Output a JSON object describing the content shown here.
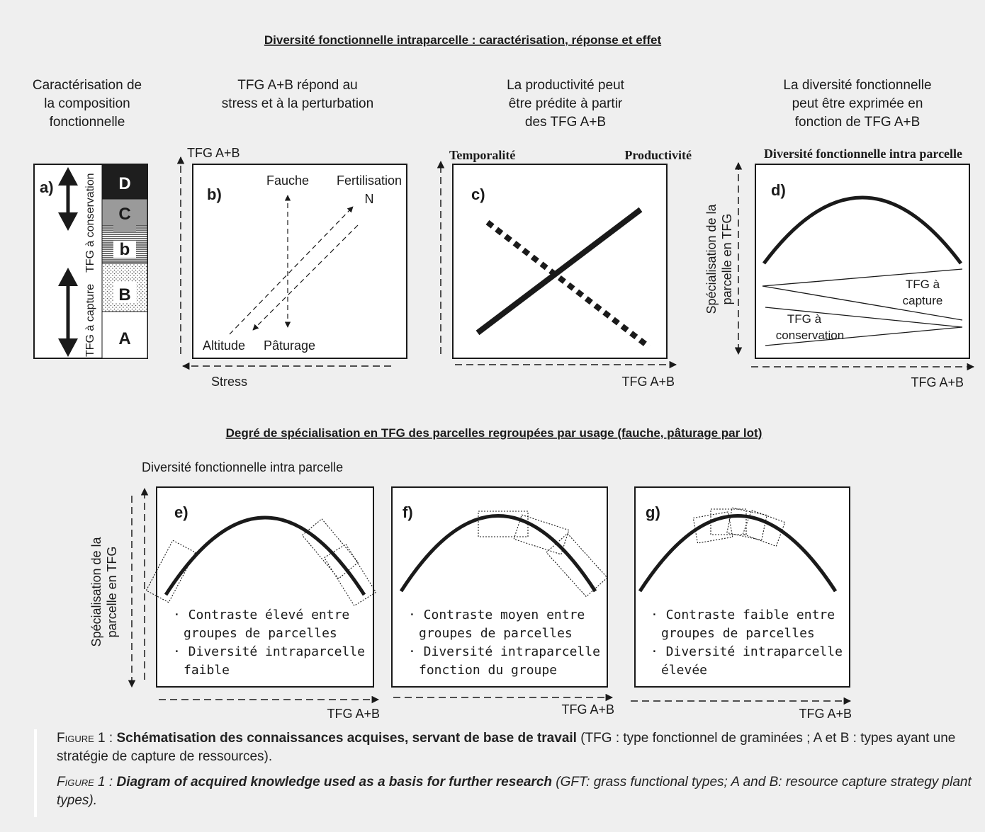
{
  "top_title": "Diversité fonctionnelle intraparcelle : caractérisation, réponse et effet",
  "bottom_title": "Degré de spécialisation en TFG des parcelles regroupées par usage (fauche, pâturage par lot)",
  "col_headers": {
    "a": [
      "Caractérisation de",
      "la composition",
      "fonctionnelle"
    ],
    "b": [
      "TFG A+B répond au",
      "stress et à la perturbation"
    ],
    "c": [
      "La productivité peut",
      "être prédite à partir",
      "des TFG A+B"
    ],
    "d": [
      "La diversité fonctionnelle",
      "peut être exprimée en",
      "fonction de TFG A+B"
    ]
  },
  "panel_a": {
    "label": "a)",
    "segments": [
      {
        "letter": "D",
        "pattern": "black"
      },
      {
        "letter": "C",
        "pattern": "gray"
      },
      {
        "letter": "b",
        "pattern": "lines"
      },
      {
        "letter": "B",
        "pattern": "dots"
      },
      {
        "letter": "A",
        "pattern": "white"
      }
    ],
    "conservation_label": "TFG à conservation",
    "capture_label": "TFG à capture"
  },
  "panel_b": {
    "label": "b)",
    "y_axis": "TFG A+B",
    "x_axis": "Stress",
    "fauche": "Fauche",
    "fertilisation": [
      "Fertilisation",
      "N"
    ],
    "altitude": "Altitude",
    "paturage": "Pâturage"
  },
  "panel_c": {
    "label": "c)",
    "left_label": "Temporalité",
    "right_label": "Productivité",
    "x_axis": "TFG A+B"
  },
  "panel_d": {
    "label": "d)",
    "top_label": "Diversité fonctionnelle intra parcelle",
    "y_axis": [
      "Spécialisation de la",
      "parcelle en TFG"
    ],
    "capture": [
      "TFG à",
      "capture"
    ],
    "conservation": [
      "TFG à",
      "conservation"
    ],
    "x_axis": "TFG A+B"
  },
  "bottom_panels": {
    "top_label": "Diversité fonctionnelle intra parcelle",
    "y_axis": [
      "Spécialisation de la",
      "parcelle en TFG"
    ],
    "x_axis": "TFG A+B",
    "e": {
      "label": "e)",
      "lines": [
        "· Contraste élevé entre",
        "groupes  de parcelles",
        "· Diversité intraparcelle",
        "faible"
      ]
    },
    "f": {
      "label": "f)",
      "lines": [
        "· Contraste moyen entre",
        "groupes de parcelles",
        "· Diversité intraparcelle",
        "fonction du groupe"
      ]
    },
    "g": {
      "label": "g)",
      "lines": [
        "· Contraste faible entre",
        "groupes de parcelles",
        "· Diversité intraparcelle",
        "élevée"
      ]
    }
  },
  "caption": {
    "fr_prefix": "Figure 1 : ",
    "fr_bold": "Schématisation des connaissances acquises, servant de base de travail",
    "fr_rest": " (TFG : type fonctionnel de graminées ; A et B : types ayant une stratégie de capture de ressources).",
    "en_prefix": "Figure 1 : ",
    "en_bold": "Diagram of acquired knowledge used as a basis for further research",
    "en_rest": " (GFT: grass functional types; A and B: resource capture strategy plant types)."
  }
}
